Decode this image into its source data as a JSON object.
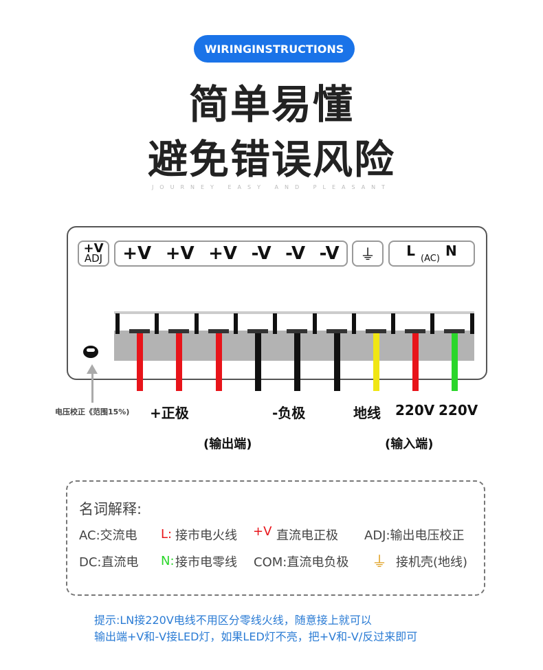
{
  "badge": "WIRINGINSTRUCTIONS",
  "title_line1": "简单易懂",
  "title_line2": "避免错误风险",
  "subtitle": "JOURNEY EASY AND PLEASANT",
  "terminal_labels": {
    "adj_top": "+V",
    "adj_bottom": "ADJ",
    "outputs": [
      "+V",
      "+V",
      "+V",
      "-V",
      "-V",
      "-V"
    ],
    "ground": "⏚",
    "L": "L",
    "AC": "(AC)",
    "N": "N"
  },
  "wire_colors": [
    "#e8141a",
    "#e8141a",
    "#e8141a",
    "#111111",
    "#111111",
    "#111111",
    "#f0e614",
    "#e8141a",
    "#2bd62b"
  ],
  "adj_note": "电压校正《范围15%)",
  "labels": {
    "positive": "+正极",
    "negative": "-负极",
    "ground": "地线",
    "l220": "220V",
    "n220": "220V",
    "output": "(输出端)",
    "input": "(输入端)"
  },
  "legend": {
    "heading": "名词解释:",
    "ac": "AC:交流电",
    "l_key": "L:",
    "l_desc": "接市电火线",
    "v_key": "+V",
    "v_desc": "直流电正极",
    "adj": "ADJ:输出电压校正",
    "dc": "DC:直流电",
    "n_key": "N:",
    "n_desc": "接市电零线",
    "com": "COM:直流电负极",
    "gnd_desc": "接机壳(地线)"
  },
  "note": {
    "line1": "提示:LN接220V电线不用区分零线火线，随意接上就可以",
    "line2": "输出端+V和-V接LED灯，如果LED灯不亮，把+V和-V/反过来即可"
  },
  "colors": {
    "accent": "#1a73e8",
    "note": "#2a7bd4",
    "ground_icon": "#e0a020"
  }
}
